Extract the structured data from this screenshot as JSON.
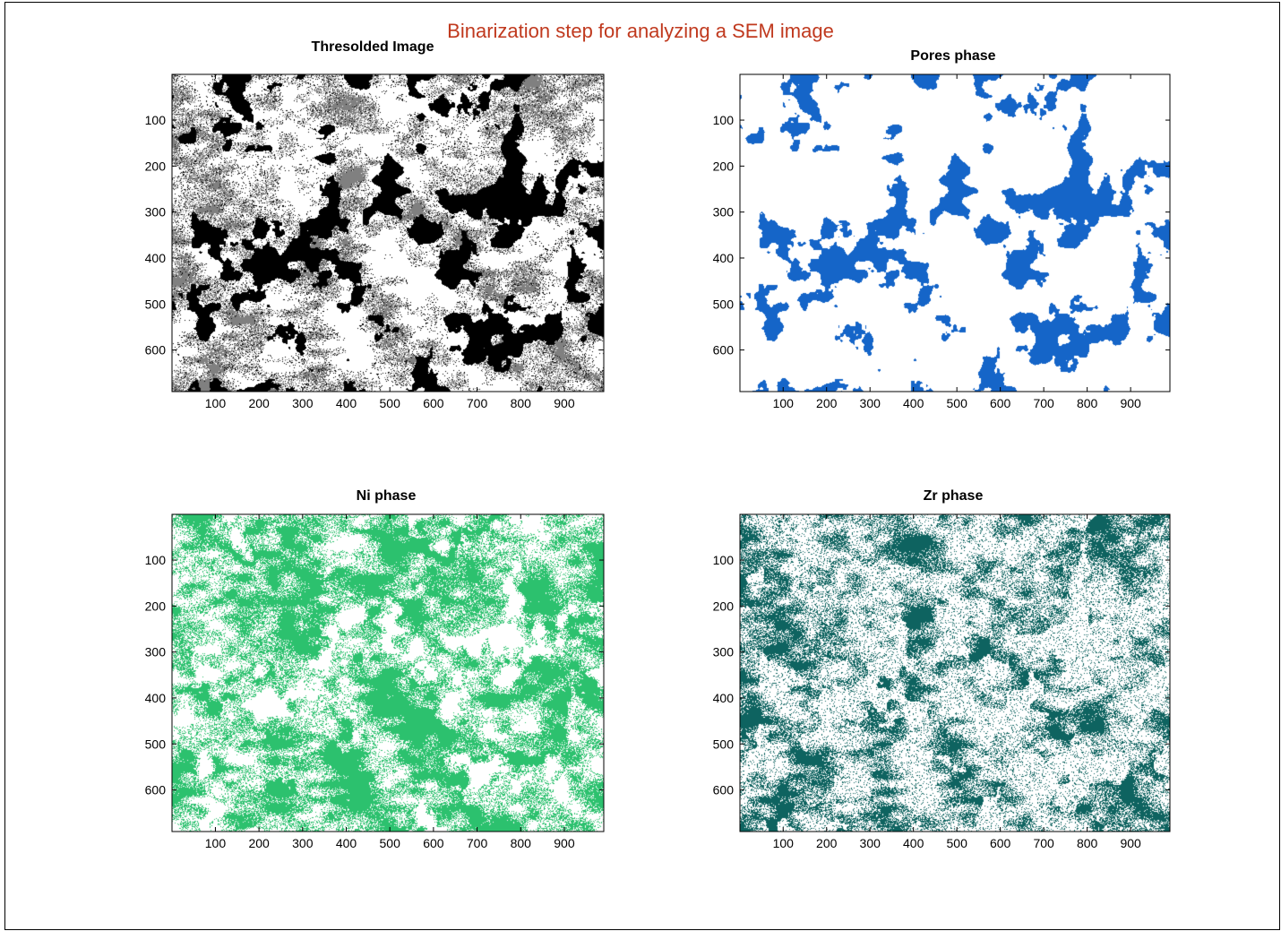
{
  "figure": {
    "suptitle": "Binarization step for analyzing a SEM image",
    "suptitle_color": "#c0391e"
  },
  "chart_data": [
    {
      "type": "heatmap",
      "title": "Thresolded Image",
      "colors": [
        "#000000",
        "#808080",
        "#ffffff"
      ],
      "xticks": [
        100,
        200,
        300,
        400,
        500,
        600,
        700,
        800,
        900
      ],
      "yticks": [
        100,
        200,
        300,
        400,
        500,
        600
      ],
      "xlim": [
        0.5,
        990.5
      ],
      "ylim": [
        0.5,
        690.5
      ],
      "y_direction": "reversed"
    },
    {
      "type": "heatmap",
      "title": "Pores phase",
      "colors": [
        "#1565c8",
        "#ffffff"
      ],
      "xticks": [
        100,
        200,
        300,
        400,
        500,
        600,
        700,
        800,
        900
      ],
      "yticks": [
        100,
        200,
        300,
        400,
        500,
        600
      ],
      "xlim": [
        0.5,
        990.5
      ],
      "ylim": [
        0.5,
        690.5
      ],
      "y_direction": "reversed"
    },
    {
      "type": "heatmap",
      "title": "Ni phase",
      "colors": [
        "#2cc16e",
        "#ffffff"
      ],
      "xticks": [
        100,
        200,
        300,
        400,
        500,
        600,
        700,
        800,
        900
      ],
      "yticks": [
        100,
        200,
        300,
        400,
        500,
        600
      ],
      "xlim": [
        0.5,
        990.5
      ],
      "ylim": [
        0.5,
        690.5
      ],
      "y_direction": "reversed"
    },
    {
      "type": "heatmap",
      "title": "Zr phase",
      "colors": [
        "#0e6360",
        "#ffffff"
      ],
      "xticks": [
        100,
        200,
        300,
        400,
        500,
        600,
        700,
        800,
        900
      ],
      "yticks": [
        100,
        200,
        300,
        400,
        500,
        600
      ],
      "xlim": [
        0.5,
        990.5
      ],
      "ylim": [
        0.5,
        690.5
      ],
      "y_direction": "reversed"
    }
  ]
}
